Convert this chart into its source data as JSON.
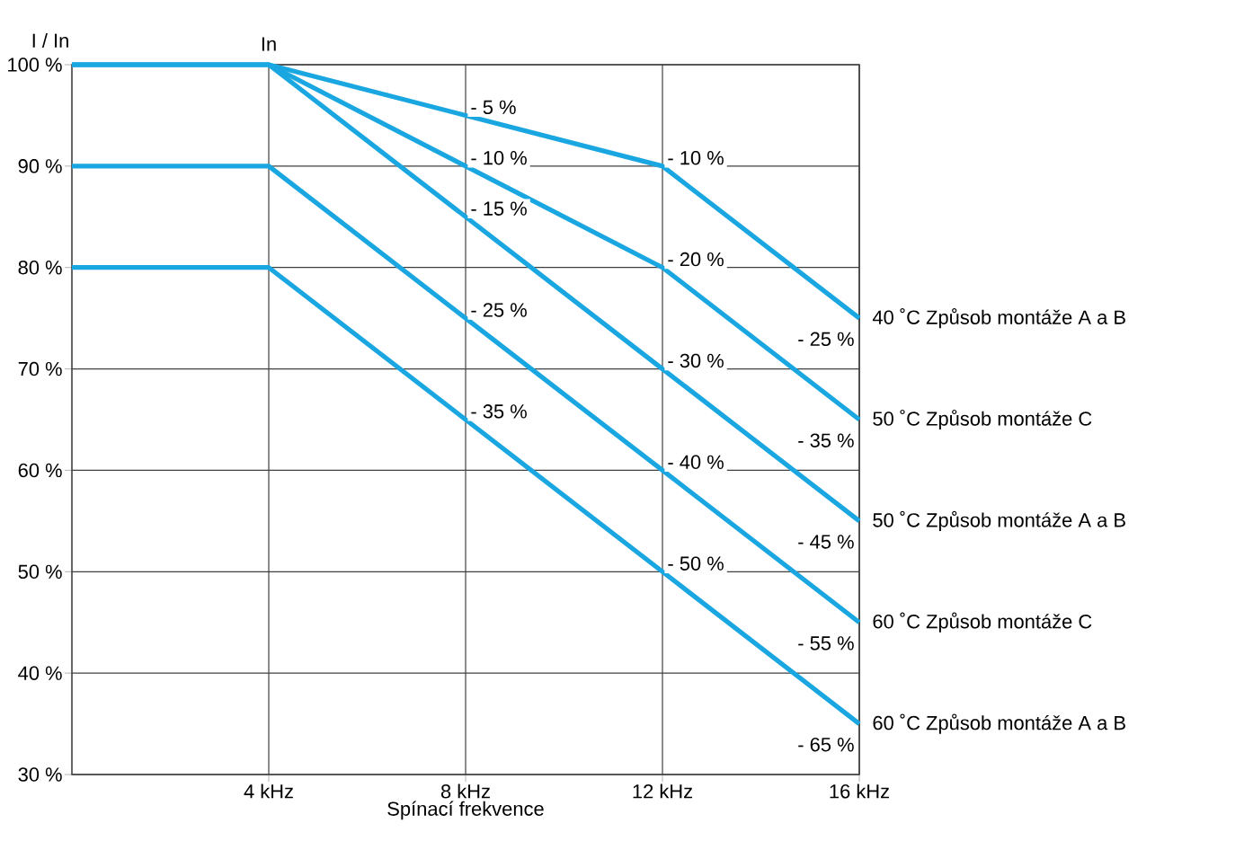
{
  "chart_data": {
    "type": "line",
    "xlabel": "Spínací frekvence",
    "ylabel": "I / In",
    "x": [
      0,
      4,
      8,
      12,
      16
    ],
    "series": [
      {
        "name": "40 ˚C Způsob montáže A a B",
        "color": "#1aa7e1",
        "values": [
          100,
          100,
          95,
          90,
          75
        ]
      },
      {
        "name": "50 ˚C Způsob montáže C",
        "color": "#1aa7e1",
        "values": [
          100,
          100,
          90,
          80,
          65
        ]
      },
      {
        "name": "50 ˚C Způsob montáže A a B",
        "color": "#1aa7e1",
        "values": [
          100,
          100,
          85,
          70,
          55
        ]
      },
      {
        "name": "60 ˚C Způsob montáže C",
        "color": "#1aa7e1",
        "values": [
          90,
          90,
          75,
          60,
          45
        ]
      },
      {
        "name": "60 ˚C Způsob montáže A a B",
        "color": "#1aa7e1",
        "values": [
          80,
          80,
          65,
          50,
          35
        ]
      }
    ],
    "xlim": [
      0,
      16
    ],
    "ylim": [
      30,
      100
    ],
    "xticks": [
      {
        "value": 4,
        "label": "4 kHz"
      },
      {
        "value": 8,
        "label": "8 kHz"
      },
      {
        "value": 12,
        "label": "12 kHz"
      },
      {
        "value": 16,
        "label": "16 kHz"
      }
    ],
    "yticks": [
      {
        "value": 30,
        "label": "30 %"
      },
      {
        "value": 40,
        "label": "40 %"
      },
      {
        "value": 50,
        "label": "50 %"
      },
      {
        "value": 60,
        "label": "60 %"
      },
      {
        "value": 70,
        "label": "70 %"
      },
      {
        "value": 80,
        "label": "80 %"
      },
      {
        "value": 90,
        "label": "90 %"
      },
      {
        "value": 100,
        "label": "100 %"
      }
    ],
    "grid": true,
    "marker": "none",
    "line_style": "solid",
    "annotations": [
      {
        "text": "In",
        "x": 4,
        "y": 100
      },
      {
        "text": "- 5 %",
        "x": 8,
        "y": 95
      },
      {
        "text": "- 10 %",
        "x": 8,
        "y": 90
      },
      {
        "text": "- 15 %",
        "x": 8,
        "y": 85
      },
      {
        "text": "- 25 %",
        "x": 8,
        "y": 75
      },
      {
        "text": "- 35 %",
        "x": 8,
        "y": 65
      },
      {
        "text": "- 10 %",
        "x": 12,
        "y": 90
      },
      {
        "text": "- 20 %",
        "x": 12,
        "y": 80
      },
      {
        "text": "- 30 %",
        "x": 12,
        "y": 70
      },
      {
        "text": "- 40 %",
        "x": 12,
        "y": 60
      },
      {
        "text": "- 50 %",
        "x": 12,
        "y": 50
      },
      {
        "text": "- 25 %",
        "x": 16,
        "y": 75
      },
      {
        "text": "- 35 %",
        "x": 16,
        "y": 65
      },
      {
        "text": "- 45 %",
        "x": 16,
        "y": 55
      },
      {
        "text": "- 55 %",
        "x": 16,
        "y": 45
      },
      {
        "text": "- 65 %",
        "x": 16,
        "y": 35
      }
    ]
  }
}
